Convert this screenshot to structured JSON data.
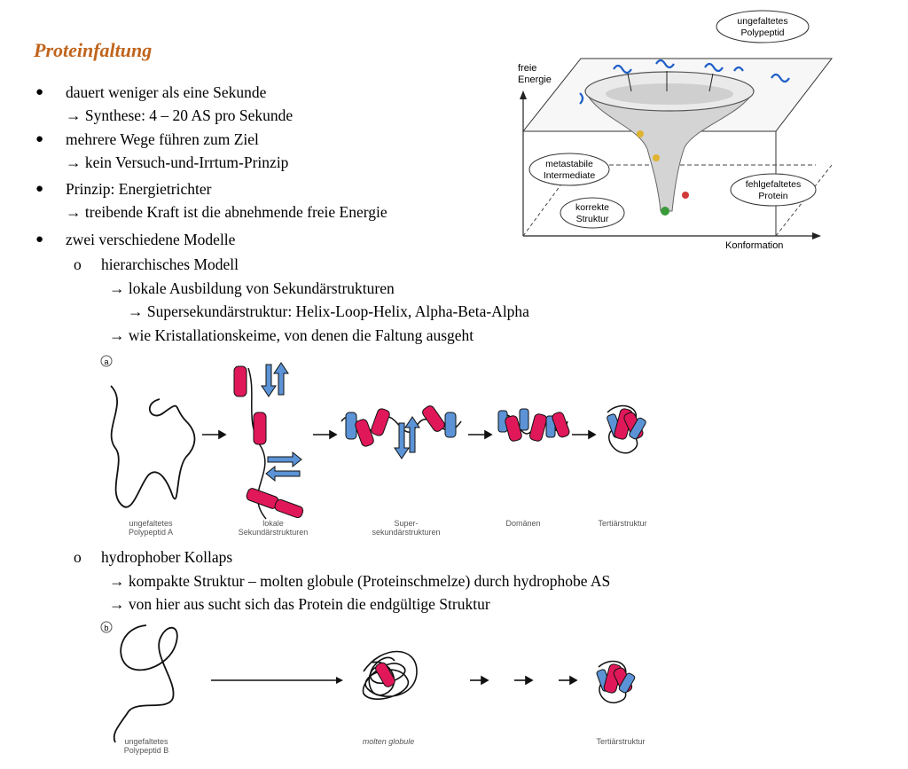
{
  "title": "Proteinfaltung",
  "bullets": [
    {
      "text": "dauert weniger als eine Sekunde",
      "sub": "→ Synthese: 4 – 20 AS pro Sekunde"
    },
    {
      "text": "mehrere Wege führen zum Ziel",
      "sub": "→ kein Versuch-und-Irrtum-Prinzip"
    },
    {
      "text": "Prinzip: Energietrichter",
      "sub": "→ treibende Kraft ist die abnehmende freie Energie"
    },
    {
      "text": "zwei verschiedene Modelle"
    }
  ],
  "models": [
    {
      "marker": "o",
      "name": "hierarchisches Modell",
      "lines": [
        "→ lokale Ausbildung von Sekundärstrukturen",
        "→ Supersekundärstruktur: Helix-Loop-Helix, Alpha-Beta-Alpha",
        "→ wie Kristallationskeime, von denen die Faltung ausgeht"
      ]
    },
    {
      "marker": "o",
      "name": "hydrophober Kollaps",
      "lines": [
        "→ kompakte Struktur – molten globule (Proteinschmelze) durch hydrophobe AS",
        "→ von hier aus sucht sich das Protein die endgültige Struktur"
      ]
    }
  ],
  "funnel": {
    "y_label_1": "freie",
    "y_label_2": "Energie",
    "x_label": "Konformation",
    "callout_unfolded_1": "ungefaltetes",
    "callout_unfolded_2": "Polypeptid",
    "callout_meta_1": "metastabile",
    "callout_meta_2": "Intermediate",
    "callout_misfolded_1": "fehlgefaltetes",
    "callout_misfolded_2": "Protein",
    "callout_correct_1": "korrekte",
    "callout_correct_2": "Struktur"
  },
  "figure_a": {
    "panel_label": "a",
    "captions": [
      {
        "l1": "ungefaltetes",
        "l2": "Polypeptid A"
      },
      {
        "l1": "lokale",
        "l2": "Sekundärstrukturen"
      },
      {
        "l1": "Super-",
        "l2": "sekundärstrukturen"
      },
      {
        "l1": "Domänen",
        "l2": ""
      },
      {
        "l1": "Tertiärstruktur",
        "l2": ""
      }
    ]
  },
  "figure_b": {
    "panel_label": "b",
    "captions": [
      {
        "l1": "ungefaltetes",
        "l2": "Polypeptid B"
      },
      {
        "l1": "molten globule",
        "l2": ""
      },
      {
        "l1": "Tertiärstruktur",
        "l2": ""
      }
    ]
  },
  "colors": {
    "title": "#c0641c",
    "helix": "#e0185a",
    "sheet": "#5b93d6",
    "correct": "#3a9b3a",
    "misfolded": "#d23a3a",
    "meta": "#e0b430"
  }
}
